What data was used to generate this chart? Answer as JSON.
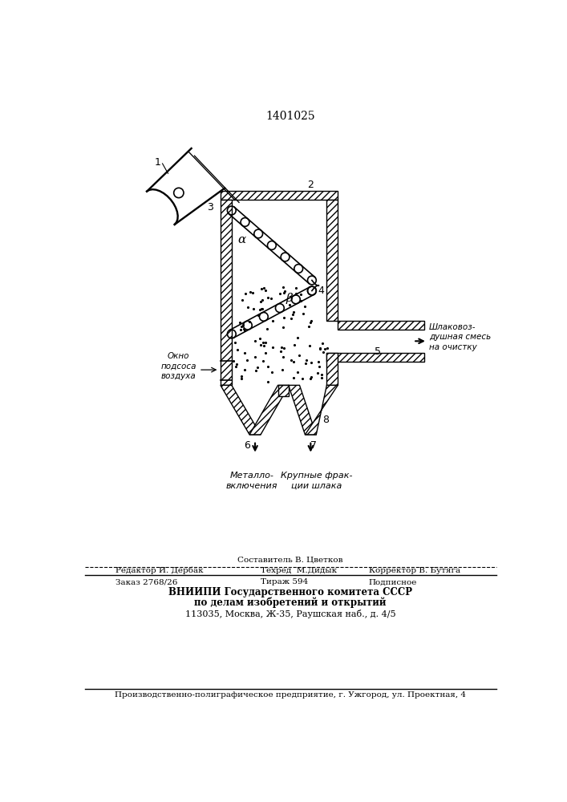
{
  "patent_number": "1401025",
  "background_color": "#ffffff",
  "line_color": "#000000",
  "fig_width": 7.07,
  "fig_height": 10.0,
  "dpi": 100,
  "labels": {
    "patent": "1401025",
    "num1": "1",
    "num2": "2",
    "num3": "3",
    "num4": "4",
    "num5": "5",
    "num6": "6",
    "num7": "7",
    "num8": "8",
    "alpha": "α",
    "beta": "β",
    "okno": "Окно\nподсоса\nвоздуха",
    "metallo": "Металло-\nвключения",
    "krupnye": "Крупные фрак-\nции шлака",
    "shlako": "Шлаковоз-\nдушная смесь\nна очистку",
    "sostavitel": "Составитель В. Цветков",
    "redaktor": "Редактор И. Дербак",
    "tekhred": "Техред  М.Дидык",
    "korrektor": "Корректор В. Бутяга",
    "zakaz": "Заказ 2768/26",
    "tirazh": "Тираж 594",
    "podpisnoe": "Подписное",
    "vniipи": "ВНИИПИ Государственного комитета СССР",
    "po_delam": "по делам изобретений и открытий",
    "adres": "113035, Москва, Ж-35, Раушская наб., д. 4/5",
    "proizv": "Производственно-полиграфическое предприятие, г. Ужгород, ул. Проектная, 4"
  }
}
